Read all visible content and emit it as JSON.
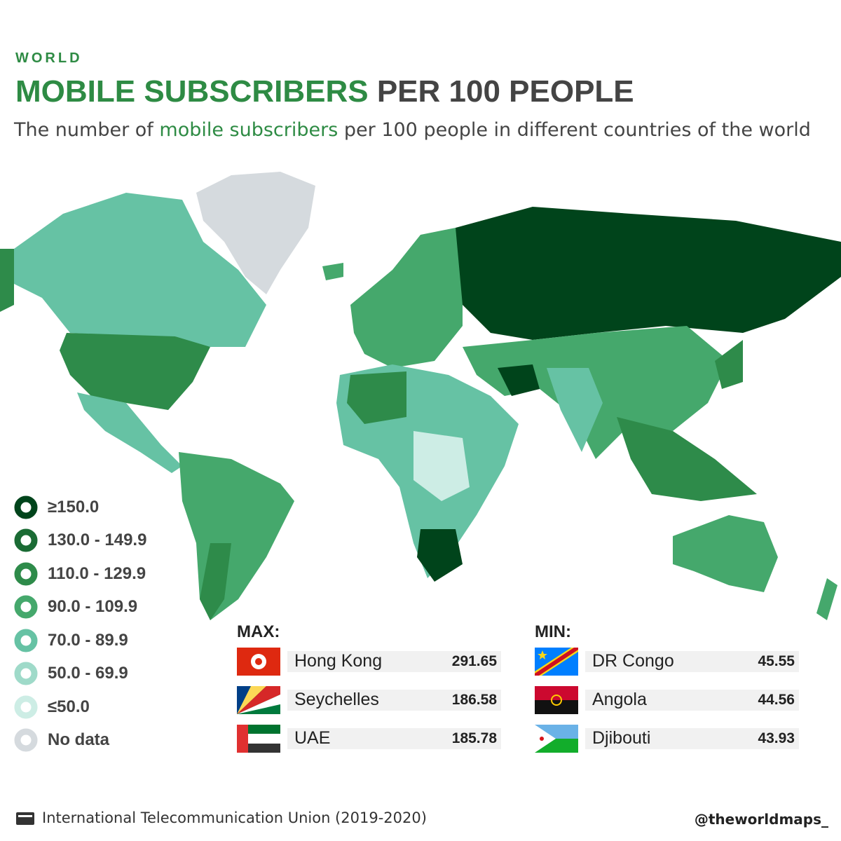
{
  "header": {
    "kicker": "WORLD",
    "title_highlight": "MOBILE SUBSCRIBERS",
    "title_rest": "PER 100 PEOPLE",
    "subtitle_start": "The number of",
    "subtitle_highlight": "mobile subscribers",
    "subtitle_end": "per 100 people in different countries of the world"
  },
  "legend": [
    {
      "label": "≥150.0",
      "color": "#00441b"
    },
    {
      "label": "130.0 - 149.9",
      "color": "#1a6b34"
    },
    {
      "label": "110.0 - 129.9",
      "color": "#2e8b4a"
    },
    {
      "label": "90.0 - 109.9",
      "color": "#45a86c"
    },
    {
      "label": "70.0 - 89.9",
      "color": "#66c2a4"
    },
    {
      "label": "50.0 - 69.9",
      "color": "#9fdac9"
    },
    {
      "label": "≤50.0",
      "color": "#cdede5"
    },
    {
      "label": "No data",
      "color": "#d5dade"
    }
  ],
  "max": {
    "label": "MAX:",
    "rows": [
      {
        "name": "Hong Kong",
        "value": 291.65
      },
      {
        "name": "Seychelles",
        "value": 186.58
      },
      {
        "name": "UAE",
        "value": 185.78
      }
    ]
  },
  "min": {
    "label": "MIN:",
    "rows": [
      {
        "name": "DR Congo",
        "value": 45.55
      },
      {
        "name": "Angola",
        "value": 44.56
      },
      {
        "name": "Djibouti",
        "value": 43.93
      }
    ]
  },
  "footer": {
    "source": "International Telecommunication Union (2019-2020)",
    "handle": "@theworldmaps_"
  }
}
